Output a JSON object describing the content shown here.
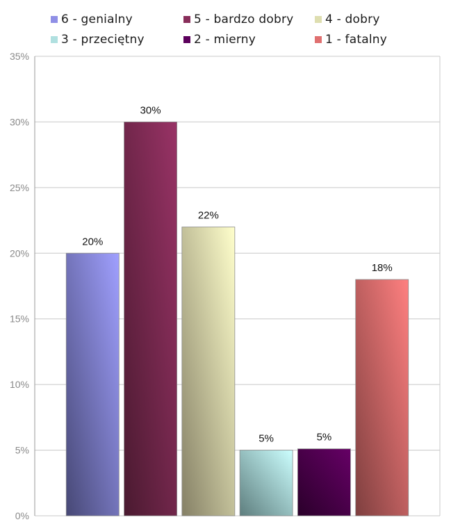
{
  "chart_data": {
    "type": "bar",
    "title": "",
    "xlabel": "",
    "ylabel": "",
    "ylim": [
      0,
      35
    ],
    "yticks": [
      0,
      5,
      10,
      15,
      20,
      25,
      30,
      35
    ],
    "ytick_suffix": "%",
    "grid": true,
    "legend_position": "top",
    "series": [
      {
        "name": "6 - genialny",
        "value": 20,
        "label": "20%",
        "color_light": "#a0a0ff",
        "color_dark": "#474875"
      },
      {
        "name": "5 - bardzo dobry",
        "value": 30,
        "label": "30%",
        "color_light": "#993366",
        "color_dark": "#4a1a30"
      },
      {
        "name": "4 - dobry",
        "value": 22,
        "label": "22%",
        "color_light": "#ffffcc",
        "color_dark": "#858066"
      },
      {
        "name": "3 - przeciętny",
        "value": 5,
        "label": "5%",
        "color_light": "#ccffff",
        "color_dark": "#5e7e7e"
      },
      {
        "name": "2 - mierny",
        "value": 5.1,
        "label": "5%",
        "color_light": "#660066",
        "color_dark": "#2a002a"
      },
      {
        "name": "1 - fatalny",
        "value": 18,
        "label": "18%",
        "color_light": "#ff8080",
        "color_dark": "#7e3f3f"
      }
    ]
  }
}
